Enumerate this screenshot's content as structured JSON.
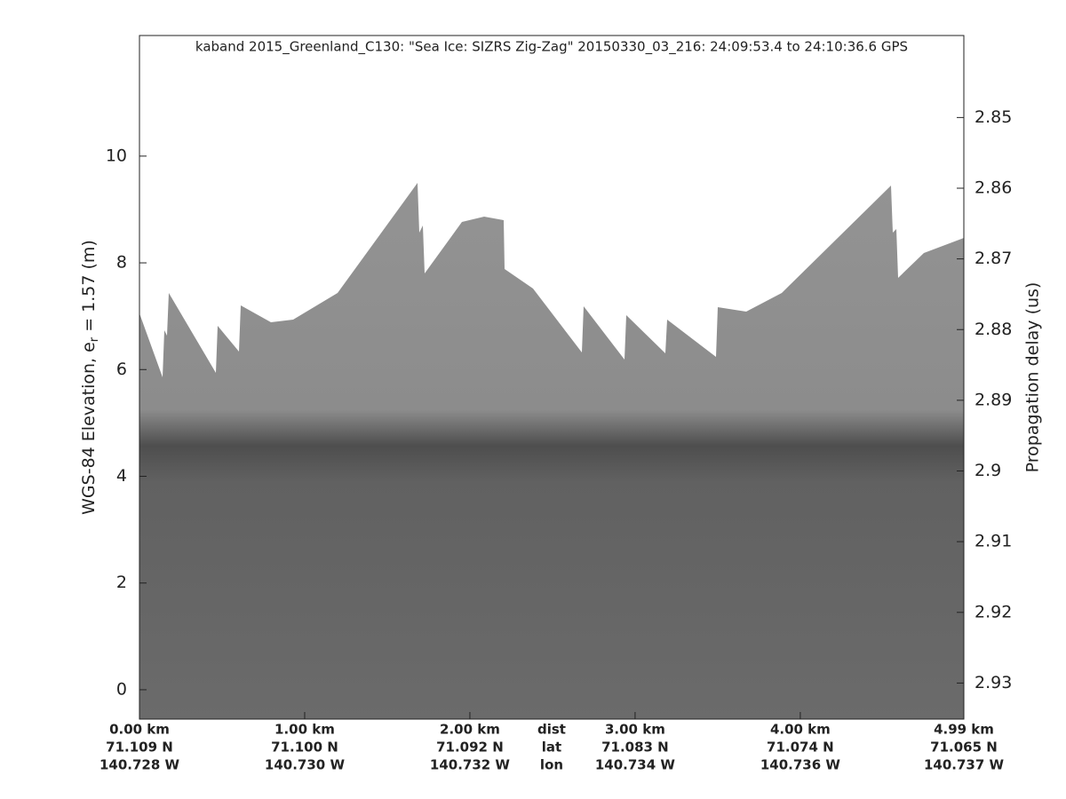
{
  "chart_data": {
    "type": "echogram",
    "title": "kaband 2015_Greenland_C130: \"Sea Ice: SIZRS Zig-Zag\"  20150330_03_216: 24:09:53.4 to 24:10:36.6 GPS",
    "ylabel": {
      "main": "WGS-84 Elevation, e",
      "sub": "r",
      "rest": " = 1.57 (m)"
    },
    "y2label": "Propagation delay (us)",
    "xlim": [
      0,
      4.99
    ],
    "xticks": [
      {
        "value": 0,
        "label": "0.00 km"
      },
      {
        "value": 1,
        "label": "1.00 km"
      },
      {
        "value": 2,
        "label": "2.00 km"
      },
      {
        "value": 3,
        "label": "3.00 km"
      },
      {
        "value": 4,
        "label": "4.00 km"
      },
      {
        "value": 4.99,
        "label": "4.99 km"
      }
    ],
    "lat_labels": [
      "71.109 N",
      "71.100 N",
      "71.092 N",
      "71.083 N",
      "71.074 N",
      "71.065 N"
    ],
    "lon_labels": [
      "140.728 W",
      "140.730 W",
      "140.732 W",
      "140.734 W",
      "140.736 W",
      "140.737 W"
    ],
    "row_labels": [
      "dist",
      "lat",
      "lon"
    ],
    "ylim": [
      -0.55,
      12.26
    ],
    "yticks": [
      0,
      2,
      4,
      6,
      8,
      10
    ],
    "y2lim": [
      2.9351,
      2.8384
    ],
    "y2ticks": [
      2.85,
      2.86,
      2.87,
      2.88,
      2.89,
      2.9,
      2.91,
      2.92,
      2.93
    ]
  }
}
